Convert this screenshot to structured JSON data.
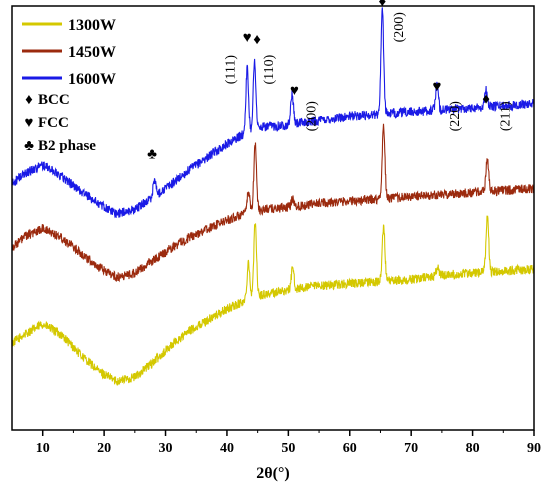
{
  "chart_data": {
    "type": "line",
    "title": "",
    "xlabel": "2θ(°)",
    "ylabel": "",
    "xlim": [
      5,
      90
    ],
    "ylim": [
      0,
      1
    ],
    "x_ticks": [
      10,
      20,
      30,
      40,
      50,
      60,
      70,
      80,
      90
    ],
    "x_tick_labels": [
      "10",
      "20",
      "30",
      "40",
      "50",
      "60",
      "70",
      "80",
      "90"
    ],
    "grid": false,
    "legend_position": "top-left",
    "legend": [
      {
        "name": "1300W",
        "color": "#d4c800"
      },
      {
        "name": "1450W",
        "color": "#9b2a0e"
      },
      {
        "name": "1600W",
        "color": "#1a1ae6"
      }
    ],
    "symbol_key": [
      {
        "symbol": "♦",
        "label": "BCC"
      },
      {
        "symbol": "♥",
        "label": "FCC"
      },
      {
        "symbol": "♣",
        "label": "B2 phase"
      }
    ],
    "series": [
      {
        "name": "1300W",
        "color": "#d4c800",
        "x": [
          5,
          7,
          10,
          13,
          16,
          19,
          22,
          25,
          28,
          31,
          34,
          37,
          40,
          43,
          46,
          50,
          55,
          60,
          65,
          70,
          75,
          80,
          85,
          90
        ],
        "y": [
          0.205,
          0.225,
          0.25,
          0.225,
          0.18,
          0.14,
          0.115,
          0.125,
          0.16,
          0.2,
          0.235,
          0.26,
          0.285,
          0.305,
          0.32,
          0.33,
          0.34,
          0.345,
          0.35,
          0.355,
          0.365,
          0.37,
          0.375,
          0.38
        ],
        "peaks": [
          {
            "x": 43.5,
            "height": 0.09
          },
          {
            "x": 44.6,
            "height": 0.18
          },
          {
            "x": 50.7,
            "height": 0.05
          },
          {
            "x": 65.5,
            "height": 0.13
          },
          {
            "x": 74.3,
            "height": 0.02
          },
          {
            "x": 82.4,
            "height": 0.13
          }
        ]
      },
      {
        "name": "1450W",
        "color": "#9b2a0e",
        "x": [
          5,
          7,
          10,
          13,
          16,
          19,
          22,
          25,
          28,
          31,
          34,
          37,
          40,
          43,
          46,
          50,
          55,
          60,
          65,
          70,
          75,
          80,
          85,
          90
        ],
        "y": [
          0.43,
          0.455,
          0.475,
          0.455,
          0.42,
          0.385,
          0.36,
          0.37,
          0.4,
          0.43,
          0.455,
          0.475,
          0.495,
          0.51,
          0.52,
          0.525,
          0.535,
          0.54,
          0.545,
          0.55,
          0.555,
          0.56,
          0.565,
          0.57
        ],
        "peaks": [
          {
            "x": 43.5,
            "height": 0.05
          },
          {
            "x": 44.6,
            "height": 0.16
          },
          {
            "x": 50.7,
            "height": 0.02
          },
          {
            "x": 65.5,
            "height": 0.17
          },
          {
            "x": 82.4,
            "height": 0.08
          }
        ]
      },
      {
        "name": "1600W",
        "color": "#1a1ae6",
        "x": [
          5,
          7,
          10,
          13,
          16,
          19,
          22,
          25,
          28,
          31,
          34,
          37,
          40,
          43,
          46,
          50,
          55,
          60,
          65,
          70,
          75,
          80,
          85,
          90
        ],
        "y": [
          0.58,
          0.605,
          0.625,
          0.6,
          0.565,
          0.535,
          0.51,
          0.52,
          0.55,
          0.58,
          0.615,
          0.645,
          0.675,
          0.7,
          0.715,
          0.72,
          0.73,
          0.74,
          0.745,
          0.75,
          0.755,
          0.76,
          0.765,
          0.77
        ],
        "peaks": [
          {
            "x": 28.2,
            "height": 0.04
          },
          {
            "x": 43.3,
            "height": 0.15
          },
          {
            "x": 44.5,
            "height": 0.16
          },
          {
            "x": 50.6,
            "height": 0.07
          },
          {
            "x": 65.3,
            "height": 0.25
          },
          {
            "x": 74.2,
            "height": 0.06
          },
          {
            "x": 82.2,
            "height": 0.04
          }
        ]
      }
    ],
    "annotations": [
      {
        "x": 43.3,
        "y": 0.915,
        "text": "♥"
      },
      {
        "x": 44.9,
        "y": 0.91,
        "text": "♦"
      },
      {
        "x": 51.0,
        "y": 0.79,
        "text": "♥"
      },
      {
        "x": 65.3,
        "y": 1.0,
        "text": "♦"
      },
      {
        "x": 74.2,
        "y": 0.8,
        "text": "♥"
      },
      {
        "x": 82.2,
        "y": 0.77,
        "text": "♦"
      },
      {
        "x": 27.8,
        "y": 0.64,
        "text": "♣"
      },
      {
        "x": 41.2,
        "y": 0.85,
        "text": "(111)",
        "rotate": true
      },
      {
        "x": 47.5,
        "y": 0.85,
        "text": "(110)",
        "rotate": true
      },
      {
        "x": 54.4,
        "y": 0.74,
        "text": "(200)",
        "rotate": true
      },
      {
        "x": 68.7,
        "y": 0.95,
        "text": "(200)",
        "rotate": true
      },
      {
        "x": 77.8,
        "y": 0.74,
        "text": "(220)",
        "rotate": true
      },
      {
        "x": 86.0,
        "y": 0.74,
        "text": "(211)",
        "rotate": true
      }
    ]
  }
}
